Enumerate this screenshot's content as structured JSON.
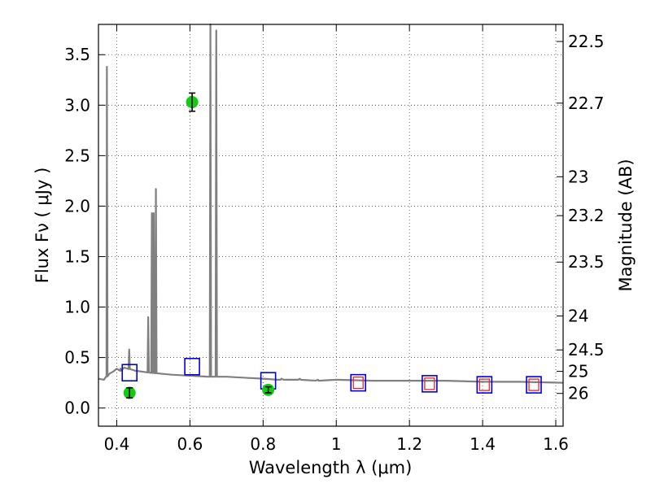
{
  "chart_data": {
    "type": "scatter",
    "xlabel": "Wavelength  λ (μm)",
    "ylabel_left": "Flux  Fν  ( μJy )",
    "ylabel_right": "Magnitude (AB)",
    "xlim": [
      0.35,
      1.62
    ],
    "ylim": [
      -0.18,
      3.8
    ],
    "x_ticks": [
      0.4,
      0.6,
      0.8,
      1.0,
      1.2,
      1.4,
      1.6
    ],
    "x_tick_labels": [
      "0.4",
      "0.6",
      "0.8",
      "1",
      "1.2",
      "1.4",
      "1.6"
    ],
    "y_ticks": [
      0.0,
      0.5,
      1.0,
      1.5,
      2.0,
      2.5,
      3.0,
      3.5
    ],
    "y_tick_labels": [
      "0.0",
      "0.5",
      "1.0",
      "1.5",
      "2.0",
      "2.5",
      "3.0",
      "3.5"
    ],
    "right_ticks": [
      22.5,
      22.7,
      23,
      23.2,
      23.5,
      24,
      24.5,
      25,
      26
    ],
    "right_tick_labels": [
      "22.5",
      "22.7",
      "23",
      "23.2",
      "23.5",
      "24",
      "24.5",
      "25",
      "26"
    ],
    "grid": true,
    "colors": {
      "spectrum": "#808080",
      "observed": "#11cc11",
      "model_box": "#0000dd",
      "model_box_inner": "#ee2222",
      "errorbar": "#000000"
    },
    "spectrum_continuum": [
      [
        0.35,
        0.29
      ],
      [
        0.365,
        0.28
      ],
      [
        0.372,
        0.31
      ],
      [
        0.38,
        0.34
      ],
      [
        0.39,
        0.36
      ],
      [
        0.4,
        0.39
      ],
      [
        0.41,
        0.37
      ],
      [
        0.42,
        0.4
      ],
      [
        0.43,
        0.39
      ],
      [
        0.45,
        0.37
      ],
      [
        0.47,
        0.36
      ],
      [
        0.49,
        0.35
      ],
      [
        0.52,
        0.34
      ],
      [
        0.55,
        0.33
      ],
      [
        0.6,
        0.32
      ],
      [
        0.65,
        0.31
      ],
      [
        0.7,
        0.31
      ],
      [
        0.75,
        0.3
      ],
      [
        0.8,
        0.29
      ],
      [
        0.85,
        0.29
      ],
      [
        0.9,
        0.29
      ],
      [
        0.95,
        0.28
      ],
      [
        1.0,
        0.28
      ],
      [
        1.1,
        0.27
      ],
      [
        1.2,
        0.27
      ],
      [
        1.3,
        0.27
      ],
      [
        1.4,
        0.26
      ],
      [
        1.5,
        0.26
      ],
      [
        1.62,
        0.25
      ]
    ],
    "emission_lines": [
      {
        "x": 0.373,
        "peak": 3.38
      },
      {
        "x": 0.41,
        "peak": 0.39
      },
      {
        "x": 0.434,
        "peak": 0.58
      },
      {
        "x": 0.486,
        "peak": 0.9
      },
      {
        "x": 0.496,
        "peak": 1.93
      },
      {
        "x": 0.501,
        "peak": 1.93
      },
      {
        "x": 0.507,
        "peak": 2.17
      },
      {
        "x": 0.656,
        "peak": 3.85
      },
      {
        "x": 0.672,
        "peak": 3.74
      }
    ],
    "observed_points": [
      {
        "x": 0.435,
        "y": 0.15,
        "err": 0.05
      },
      {
        "x": 0.606,
        "y": 3.03,
        "err": 0.09
      },
      {
        "x": 0.814,
        "y": 0.18,
        "err": 0.03
      }
    ],
    "model_boxes": [
      {
        "x": 0.435,
        "y": 0.35,
        "inner": false
      },
      {
        "x": 0.606,
        "y": 0.41,
        "inner": false
      },
      {
        "x": 0.814,
        "y": 0.27,
        "inner": false
      },
      {
        "x": 1.06,
        "y": 0.25,
        "inner": true
      },
      {
        "x": 1.255,
        "y": 0.24,
        "inner": true
      },
      {
        "x": 1.405,
        "y": 0.23,
        "inner": true
      },
      {
        "x": 1.54,
        "y": 0.23,
        "inner": true
      }
    ]
  }
}
